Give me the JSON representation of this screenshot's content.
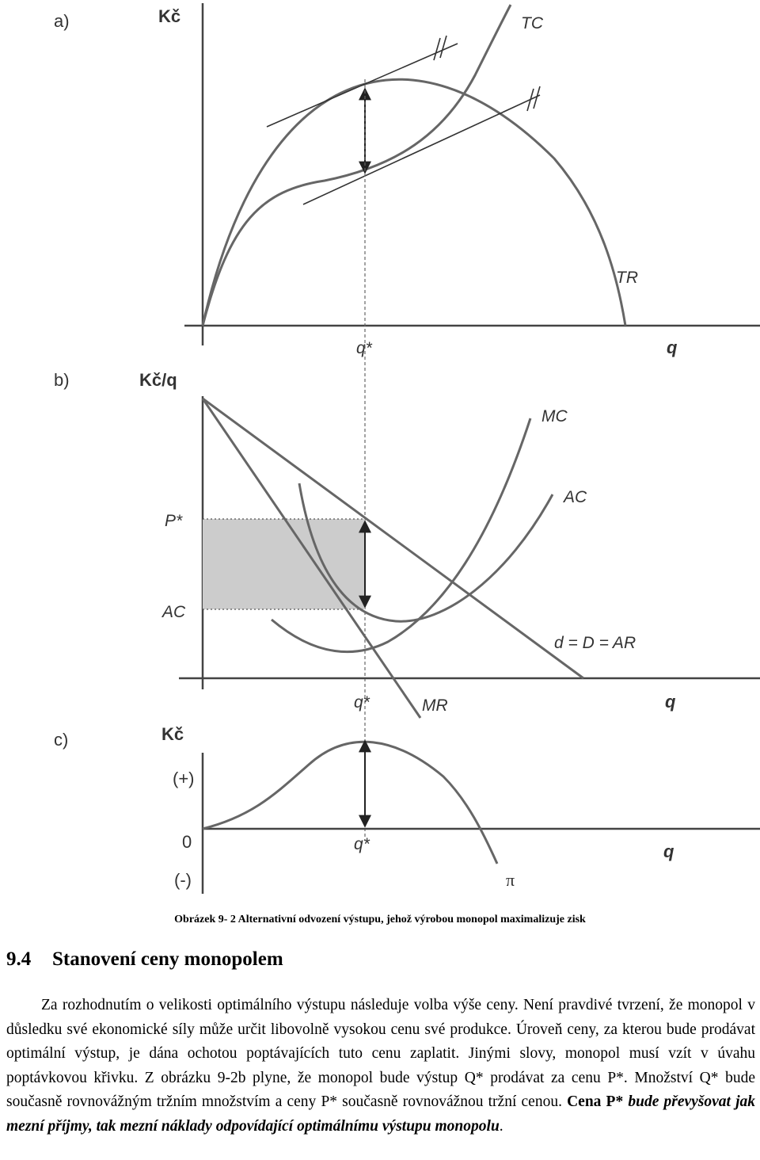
{
  "figure": {
    "panel_a": {
      "letter": "a)",
      "y_axis_label": "Kč",
      "x_axis_label": "q",
      "qstar_label": "q*",
      "tc_label": "TC",
      "tr_label": "TR"
    },
    "panel_b": {
      "letter": "b)",
      "y_axis_label": "Kč/q",
      "x_axis_label": "q",
      "qstar_label": "q*",
      "pstar_label": "P*",
      "ac_level_label": "AC",
      "mc_label": "MC",
      "ac_curve_label": "AC",
      "demand_label": "d = D  =  AR",
      "mr_label": "MR"
    },
    "panel_c": {
      "letter": "c)",
      "y_axis_label": "Kč",
      "x_axis_label": "q",
      "qstar_label": "q*",
      "plus_label": "(+)",
      "zero_label": "0",
      "minus_label": "(-)",
      "profit_label": "π"
    }
  },
  "caption": "Obrázek 9- 2 Alternativní odvození výstupu, jehož výrobou monopol maximalizuje zisk",
  "section": {
    "number": "9.4",
    "title": "Stanovení ceny monopolem"
  },
  "body": {
    "plain": "Za rozhodnutím o velikosti optimálního výstupu následuje volba výše ceny. Není pravdivé tvrzení, že monopol v důsledku své ekonomické síly může určit libovolně vysokou cenu své produkce. Úroveň ceny, za kterou bude prodávat optimální výstup, je dána ochotou poptávajících tuto cenu zaplatit. Jinými slovy, monopol musí vzít v úvahu poptávkovou křivku. Z obrázku 9-2b plyne, že monopol bude výstup Q* prodávat za cenu P*. Množství Q* bude současně rovnovážným tržním množstvím a ceny P* současně rovnovážnou tržní cenou. ",
    "bold": "Cena P* ",
    "bold_italic": "bude převyšovat jak mezní příjmy, tak mezní náklady odpovídající optimálnímu výstupu monopolu",
    "tail": "."
  }
}
